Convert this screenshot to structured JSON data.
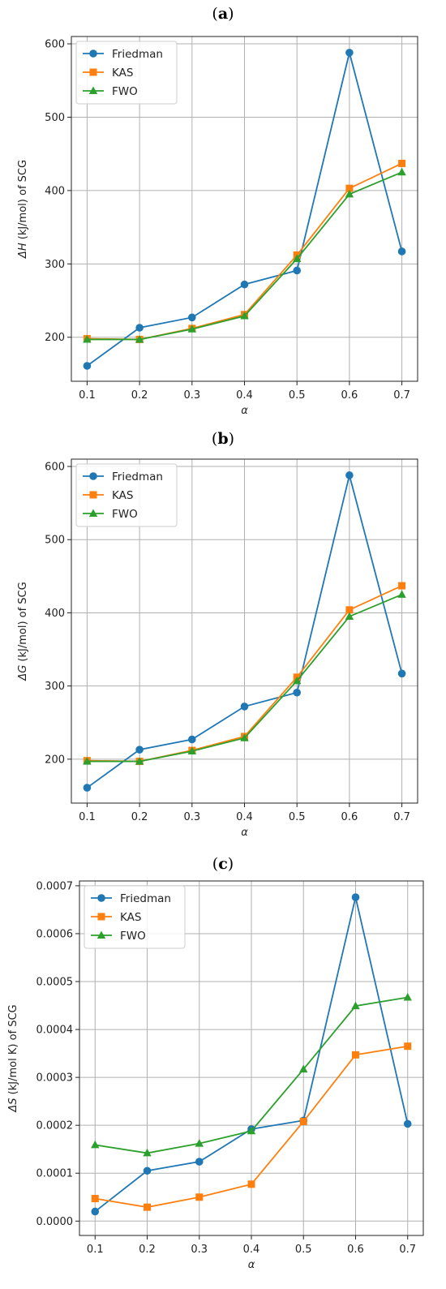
{
  "colors": {
    "Friedman": "#1f77b4",
    "KAS": "#ff7f0e",
    "FWO": "#2ca02c",
    "grid": "#b0b0b0"
  },
  "chart_data": [
    {
      "panel": "a",
      "type": "line",
      "xlabel": "α",
      "ylabel": "ΔH (kJ/mol) of SCG",
      "ylabel_parts": [
        "ΔH",
        " (kJ/mol) of SCG"
      ],
      "x": [
        0.1,
        0.2,
        0.3,
        0.4,
        0.5,
        0.6,
        0.7
      ],
      "xticks": [
        "0.1",
        "0.2",
        "0.3",
        "0.4",
        "0.5",
        "0.6",
        "0.7"
      ],
      "yticks": [
        "200",
        "300",
        "400",
        "500",
        "600"
      ],
      "ytick_values": [
        200,
        300,
        400,
        500,
        600
      ],
      "xlim": [
        0.07,
        0.73
      ],
      "ylim": [
        140,
        610
      ],
      "grid": true,
      "legend": "top-left",
      "series": [
        {
          "name": "Friedman",
          "marker": "circle",
          "values": [
            161,
            213,
            227,
            272,
            291,
            588,
            317
          ]
        },
        {
          "name": "KAS",
          "marker": "square",
          "values": [
            198,
            197,
            212,
            231,
            312,
            403,
            437
          ]
        },
        {
          "name": "FWO",
          "marker": "triangle",
          "values": [
            197,
            197,
            211,
            229,
            307,
            395,
            425
          ]
        }
      ]
    },
    {
      "panel": "b",
      "type": "line",
      "xlabel": "α",
      "ylabel": "ΔG (kJ/mol) of SCG",
      "ylabel_parts": [
        "ΔG",
        " (kJ/mol) of SCG"
      ],
      "x": [
        0.1,
        0.2,
        0.3,
        0.4,
        0.5,
        0.6,
        0.7
      ],
      "xticks": [
        "0.1",
        "0.2",
        "0.3",
        "0.4",
        "0.5",
        "0.6",
        "0.7"
      ],
      "yticks": [
        "200",
        "300",
        "400",
        "500",
        "600"
      ],
      "ytick_values": [
        200,
        300,
        400,
        500,
        600
      ],
      "xlim": [
        0.07,
        0.73
      ],
      "ylim": [
        140,
        610
      ],
      "grid": true,
      "legend": "top-left",
      "series": [
        {
          "name": "Friedman",
          "marker": "circle",
          "values": [
            161,
            213,
            227,
            272,
            291,
            588,
            317
          ]
        },
        {
          "name": "KAS",
          "marker": "square",
          "values": [
            198,
            197,
            212,
            231,
            312,
            404,
            437
          ]
        },
        {
          "name": "FWO",
          "marker": "triangle",
          "values": [
            197,
            197,
            211,
            229,
            307,
            395,
            425
          ]
        }
      ]
    },
    {
      "panel": "c",
      "type": "line",
      "xlabel": "α",
      "ylabel": "ΔS (kJ/mol  K) of SCG",
      "ylabel_parts": [
        "ΔS",
        " (kJ/mol  K) of SCG"
      ],
      "x": [
        0.1,
        0.2,
        0.3,
        0.4,
        0.5,
        0.6,
        0.7
      ],
      "xticks": [
        "0.1",
        "0.2",
        "0.3",
        "0.4",
        "0.5",
        "0.6",
        "0.7"
      ],
      "yticks": [
        "0.0000",
        "0.0001",
        "0.0002",
        "0.0003",
        "0.0004",
        "0.0005",
        "0.0006",
        "0.0007"
      ],
      "ytick_values": [
        0,
        0.0001,
        0.0002,
        0.0003,
        0.0004,
        0.0005,
        0.0006,
        0.0007
      ],
      "xlim": [
        0.07,
        0.73
      ],
      "ylim": [
        -3e-05,
        0.00071
      ],
      "grid": true,
      "legend": "top-left",
      "series": [
        {
          "name": "Friedman",
          "marker": "circle",
          "values": [
            2e-05,
            0.000105,
            0.000124,
            0.000192,
            0.00021,
            0.000676,
            0.000203
          ]
        },
        {
          "name": "KAS",
          "marker": "square",
          "values": [
            4.7e-05,
            2.9e-05,
            5e-05,
            7.7e-05,
            0.000208,
            0.000347,
            0.000365
          ]
        },
        {
          "name": "FWO",
          "marker": "triangle",
          "values": [
            0.000159,
            0.000142,
            0.000162,
            0.000188,
            0.000317,
            0.000449,
            0.000467
          ]
        }
      ]
    }
  ],
  "panel_labels": [
    "(a)",
    "(b)",
    "(c)"
  ]
}
